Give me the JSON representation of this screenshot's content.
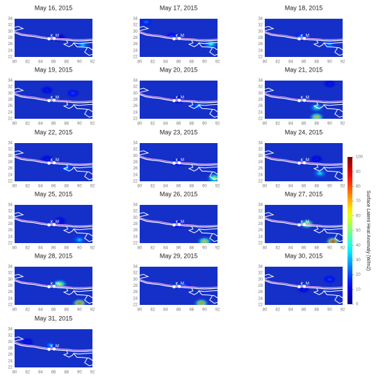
{
  "axes": {
    "xlim": [
      80,
      92
    ],
    "ylim": [
      22,
      34
    ],
    "xticks": [
      80,
      82,
      84,
      86,
      88,
      90,
      92
    ],
    "yticks": [
      22,
      24,
      26,
      28,
      30,
      32,
      34
    ]
  },
  "stations": [
    {
      "label": "K",
      "lon": 85.3,
      "lat": 27.7
    },
    {
      "label": "M",
      "lon": 86.1,
      "lat": 27.8
    }
  ],
  "colorbar": {
    "label": "Surface Latent Heat Anomaly (W/m2)",
    "lim": [
      0,
      100
    ],
    "ticks": [
      0,
      10,
      20,
      30,
      40,
      50,
      60,
      70,
      80,
      90,
      100
    ]
  },
  "panels": [
    {
      "title": "May 16, 2015",
      "hotspots": [
        {
          "lon": 87,
          "lat": 28,
          "value": 12
        },
        {
          "lon": 90.5,
          "lat": 25.8,
          "value": 35
        }
      ]
    },
    {
      "title": "May 17, 2015",
      "hotspots": [
        {
          "lon": 91,
          "lat": 26,
          "value": 45
        },
        {
          "lon": 85,
          "lat": 28.5,
          "value": 20
        },
        {
          "lon": 81,
          "lat": 33,
          "value": 25
        }
      ]
    },
    {
      "title": "May 18, 2015",
      "hotspots": [
        {
          "lon": 85.5,
          "lat": 28.5,
          "value": 25
        },
        {
          "lon": 90,
          "lat": 26,
          "value": 30
        }
      ]
    },
    {
      "title": "May 19, 2015",
      "hotspots": [
        {
          "lon": 89,
          "lat": 30,
          "value": 20
        },
        {
          "lon": 85,
          "lat": 31,
          "value": 15
        }
      ]
    },
    {
      "title": "May 20, 2015",
      "hotspots": [
        {
          "lon": 89,
          "lat": 26,
          "value": 30
        },
        {
          "lon": 86,
          "lat": 28,
          "value": 15
        }
      ]
    },
    {
      "title": "May 21, 2015",
      "hotspots": [
        {
          "lon": 88,
          "lat": 25.5,
          "value": 45
        },
        {
          "lon": 88,
          "lat": 22.5,
          "value": 70
        },
        {
          "lon": 90,
          "lat": 33,
          "value": 15
        }
      ]
    },
    {
      "title": "May 22, 2015",
      "hotspots": [
        {
          "lon": 88,
          "lat": 26,
          "value": 30
        },
        {
          "lon": 85,
          "lat": 29,
          "value": 15
        }
      ]
    },
    {
      "title": "May 23, 2015",
      "hotspots": [
        {
          "lon": 91.5,
          "lat": 23,
          "value": 60
        },
        {
          "lon": 86,
          "lat": 28,
          "value": 20
        }
      ]
    },
    {
      "title": "May 24, 2015",
      "hotspots": [
        {
          "lon": 88.5,
          "lat": 24.5,
          "value": 40
        },
        {
          "lon": 88,
          "lat": 29,
          "value": 15
        }
      ]
    },
    {
      "title": "May 25, 2015",
      "hotspots": [
        {
          "lon": 90,
          "lat": 23,
          "value": 35
        },
        {
          "lon": 87,
          "lat": 29,
          "value": 15
        }
      ]
    },
    {
      "title": "May 26, 2015",
      "hotspots": [
        {
          "lon": 90,
          "lat": 22.5,
          "value": 70
        },
        {
          "lon": 86,
          "lat": 28,
          "value": 20
        }
      ]
    },
    {
      "title": "May 27, 2015",
      "hotspots": [
        {
          "lon": 86.5,
          "lat": 28,
          "value": 70
        },
        {
          "lon": 90.5,
          "lat": 22.5,
          "value": 85
        }
      ]
    },
    {
      "title": "May 28, 2015",
      "hotspots": [
        {
          "lon": 87,
          "lat": 28.5,
          "value": 60
        },
        {
          "lon": 90,
          "lat": 22.5,
          "value": 80
        }
      ]
    },
    {
      "title": "May 29, 2015",
      "hotspots": [
        {
          "lon": 89.5,
          "lat": 22.5,
          "value": 75
        },
        {
          "lon": 87,
          "lat": 28,
          "value": 25
        }
      ]
    },
    {
      "title": "May 30, 2015",
      "hotspots": [
        {
          "lon": 90,
          "lat": 30,
          "value": 20
        },
        {
          "lon": 86,
          "lat": 27,
          "value": 15
        }
      ]
    },
    {
      "title": "May 31, 2015",
      "hotspots": [
        {
          "lon": 85.5,
          "lat": 29,
          "value": 30
        },
        {
          "lon": 82,
          "lat": 30,
          "value": 15
        }
      ]
    }
  ]
}
